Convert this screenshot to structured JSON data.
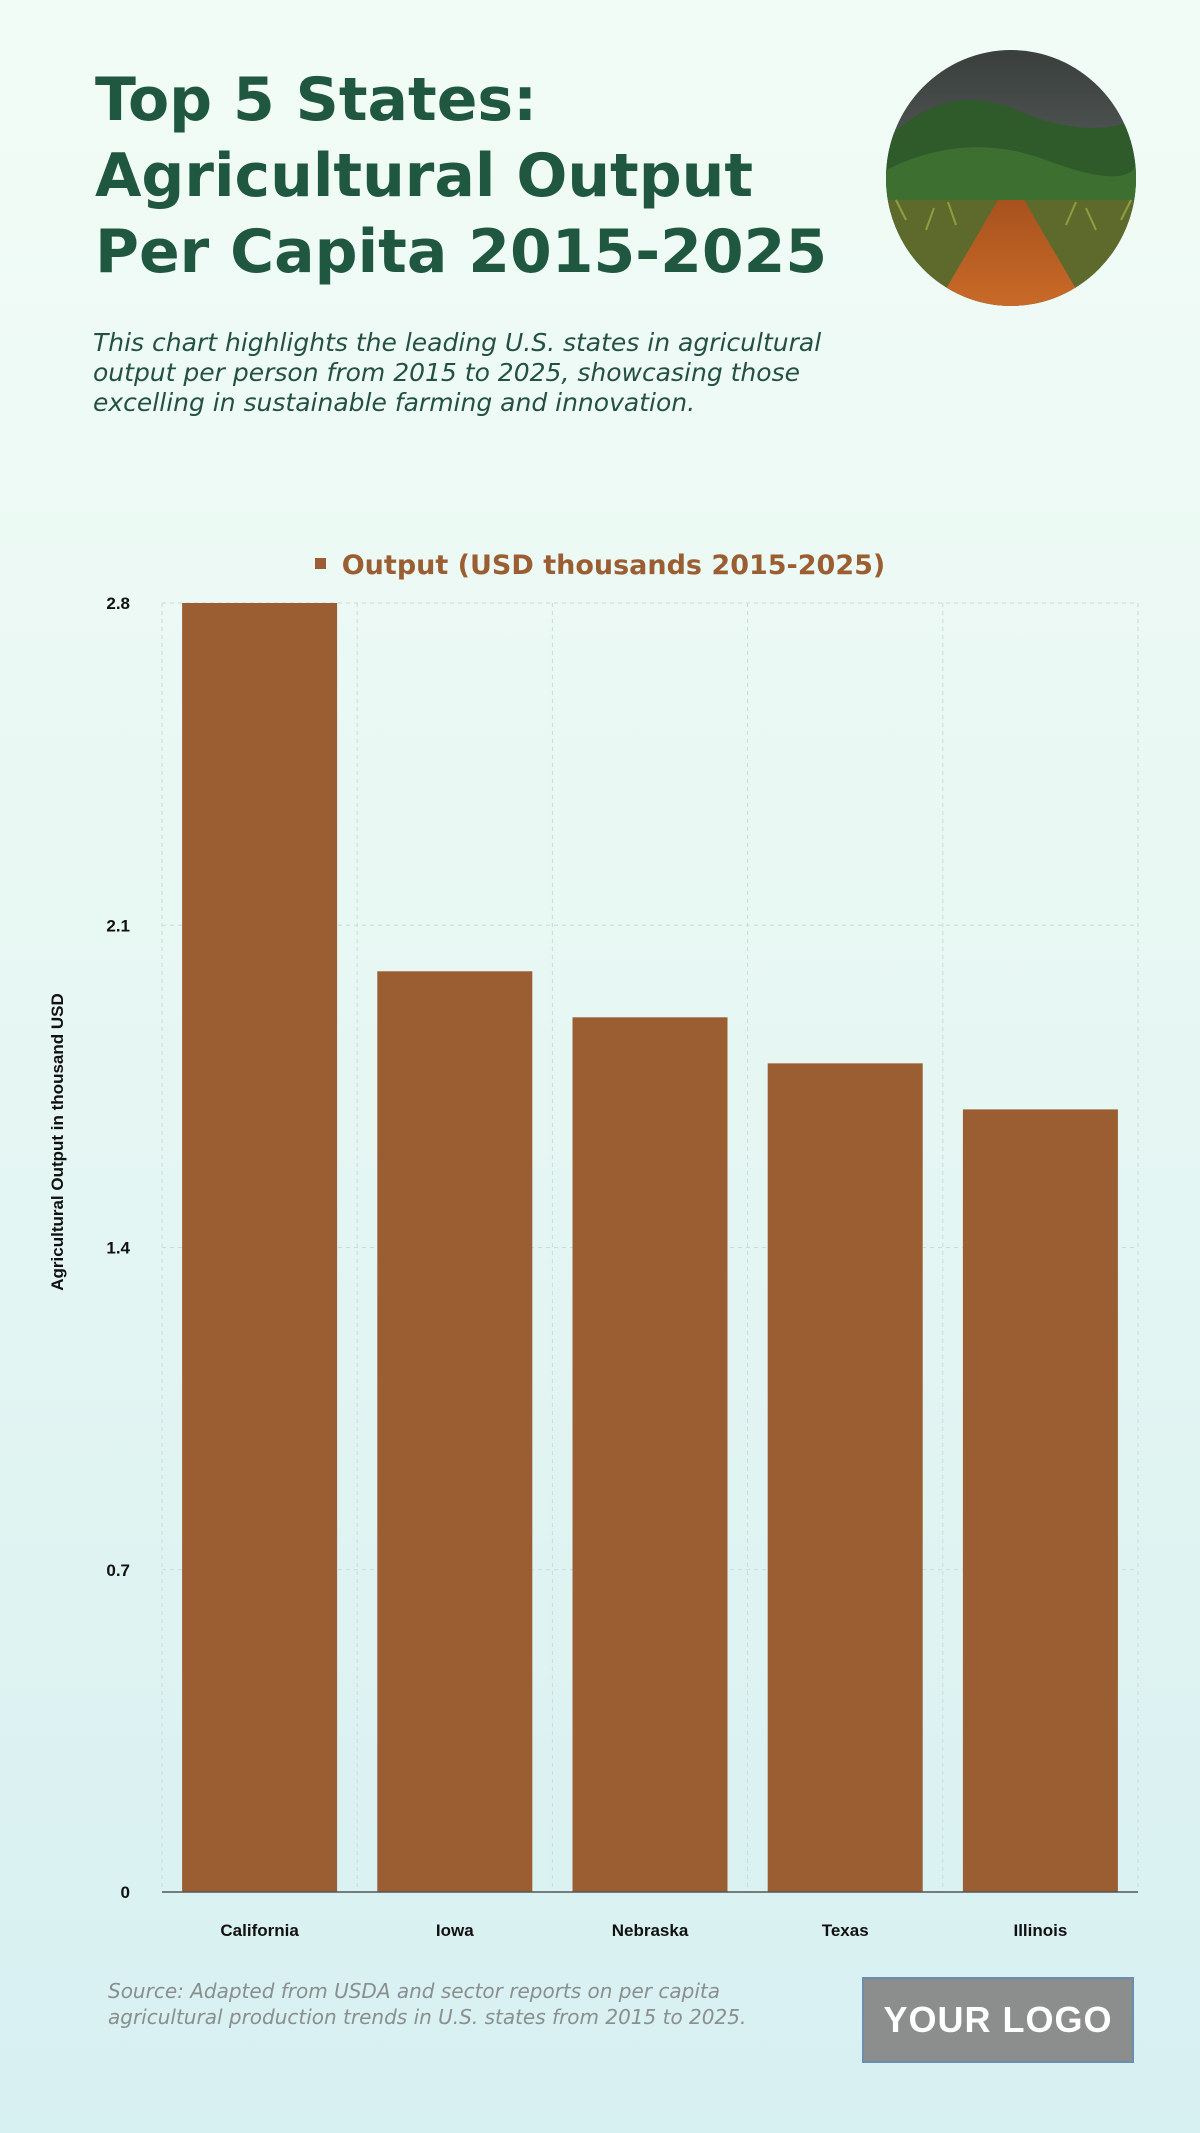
{
  "header": {
    "title": "Top 5 States: Agricultural Output Per Capita 2015-2025",
    "subtitle": "This chart highlights the leading U.S. states in agricultural output per person from 2015 to 2025, showcasing those excelling in sustainable farming and innovation."
  },
  "footer": {
    "source": "Source: Adapted from USDA and sector reports on per capita agricultural production trends in U.S. states from 2015 to 2025.",
    "logo": "YOUR LOGO"
  },
  "colors": {
    "bar": "#9a5e32",
    "title": "#1f5740",
    "grid": "#c9ddd8"
  },
  "chart_data": {
    "type": "bar",
    "categories": [
      "California",
      "Iowa",
      "Nebraska",
      "Texas",
      "Illinois"
    ],
    "series": [
      {
        "name": "Output (USD thousands 2015-2025)",
        "values": [
          2.8,
          2.0,
          1.9,
          1.8,
          1.7
        ]
      }
    ],
    "ylabel": "Agricultural Output in thousand USD",
    "xlabel": "",
    "ylim": [
      0,
      2.8
    ],
    "yticks": [
      "0",
      "0.7",
      "1.4",
      "2.1",
      "2.8"
    ],
    "grid": true,
    "legend": "top-center"
  }
}
